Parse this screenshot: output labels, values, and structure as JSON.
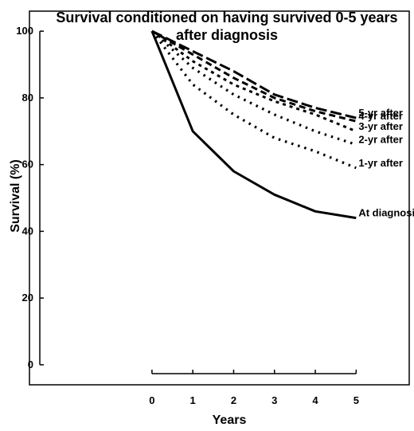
{
  "chart_data": {
    "type": "line",
    "title_lines": [
      "Survival conditioned on having survived 0-5 years",
      "after diagnosis"
    ],
    "xlabel": "Years",
    "ylabel": "Survival (%)",
    "x_ticks": [
      0,
      1,
      2,
      3,
      4,
      5
    ],
    "y_ticks": [
      0,
      20,
      40,
      60,
      80,
      100
    ],
    "xlim": [
      -3,
      6.3
    ],
    "ylim": [
      -6,
      106
    ],
    "grid": false,
    "legend": "series labels at line ends (right)",
    "x": [
      0,
      1,
      2,
      3,
      4,
      5
    ],
    "series": [
      {
        "name": "At diagnosis",
        "values": [
          100,
          70,
          58,
          51,
          46,
          44
        ],
        "style": "solid"
      },
      {
        "name": "1-yr after",
        "values": [
          100,
          84,
          75,
          68,
          64,
          59
        ],
        "style": "dotted"
      },
      {
        "name": "2-yr after",
        "values": [
          100,
          89,
          81,
          75,
          70,
          66
        ],
        "style": "dotted"
      },
      {
        "name": "3-yr after",
        "values": [
          100,
          91,
          84,
          79,
          75,
          70
        ],
        "style": "short-dash"
      },
      {
        "name": "4-yr after",
        "values": [
          100,
          93,
          86,
          80,
          76,
          73
        ],
        "style": "dash"
      },
      {
        "name": "5-yr after",
        "values": [
          100,
          94,
          88,
          81,
          77,
          74
        ],
        "style": "long-dash"
      }
    ]
  }
}
